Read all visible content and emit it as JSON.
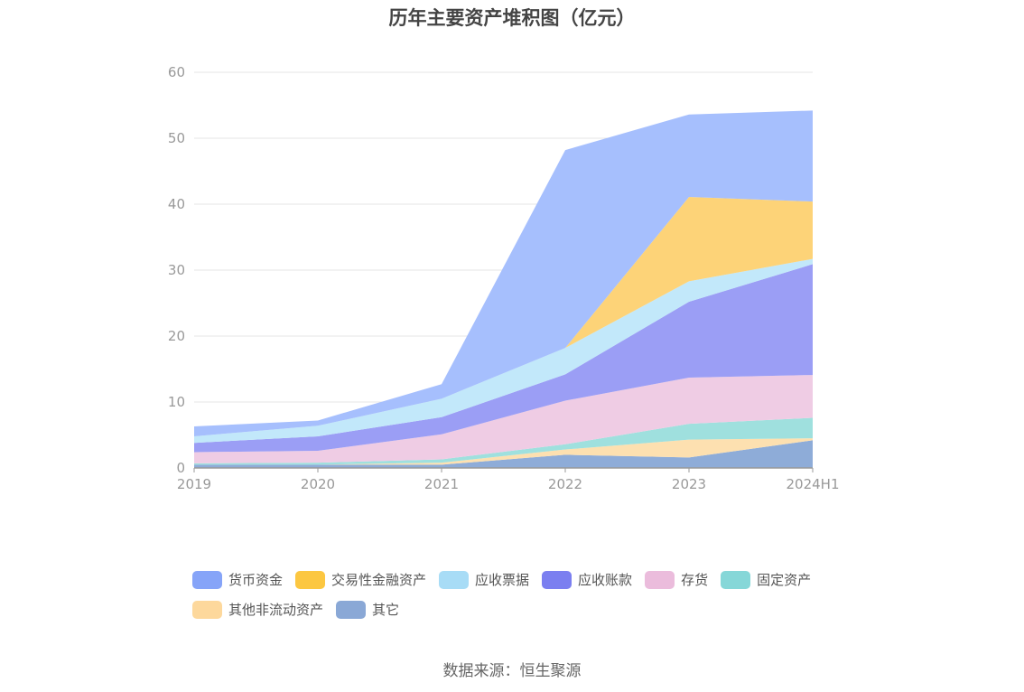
{
  "chart_data": {
    "type": "area",
    "stacked": true,
    "title": "历年主要资产堆积图（亿元）",
    "categories": [
      "2019",
      "2020",
      "2021",
      "2022",
      "2023",
      "2024H1"
    ],
    "ylim": [
      0,
      60
    ],
    "yticks": [
      0,
      10,
      20,
      30,
      40,
      50,
      60
    ],
    "grid": true,
    "legend_position": "bottom",
    "series": [
      {
        "name": "其它",
        "color": "#8eacd8",
        "values": [
          0.5,
          0.5,
          0.5,
          2.0,
          1.6,
          4.2
        ]
      },
      {
        "name": "其他非流动资产",
        "color": "#fde0b0",
        "values": [
          0.0,
          0.0,
          0.3,
          0.8,
          2.7,
          0.3
        ]
      },
      {
        "name": "固定资产",
        "color": "#9fe0de",
        "values": [
          0.2,
          0.3,
          0.5,
          0.8,
          2.4,
          3.1
        ]
      },
      {
        "name": "存货",
        "color": "#efcce4",
        "values": [
          1.7,
          1.8,
          3.8,
          6.6,
          7.0,
          6.5
        ]
      },
      {
        "name": "应收账款",
        "color": "#9b9ef5",
        "values": [
          1.4,
          2.2,
          2.6,
          4.0,
          11.5,
          16.8
        ]
      },
      {
        "name": "应收票据",
        "color": "#c2e8fa",
        "values": [
          1.0,
          1.6,
          2.8,
          4.0,
          3.1,
          0.8
        ]
      },
      {
        "name": "交易性金融资产",
        "color": "#fdd378",
        "values": [
          0.0,
          0.0,
          0.0,
          0.0,
          12.8,
          8.7
        ]
      },
      {
        "name": "货币资金",
        "color": "#a6bffd",
        "values": [
          1.5,
          0.8,
          2.2,
          30.0,
          12.5,
          13.8
        ]
      }
    ],
    "legend_order": [
      "货币资金",
      "交易性金融资产",
      "应收票据",
      "应收账款",
      "存货",
      "固定资产",
      "其他非流动资产",
      "其它"
    ],
    "legend_colors": {
      "货币资金": "#86a4f8",
      "交易性金融资产": "#fcc741",
      "应收票据": "#a8dcf6",
      "应收账款": "#7b7ff0",
      "存货": "#ebbcdc",
      "固定资产": "#86d7d8",
      "其他非流动资产": "#fdd89c",
      "其它": "#8aa8d6"
    }
  },
  "source_text": "数据来源：恒生聚源"
}
